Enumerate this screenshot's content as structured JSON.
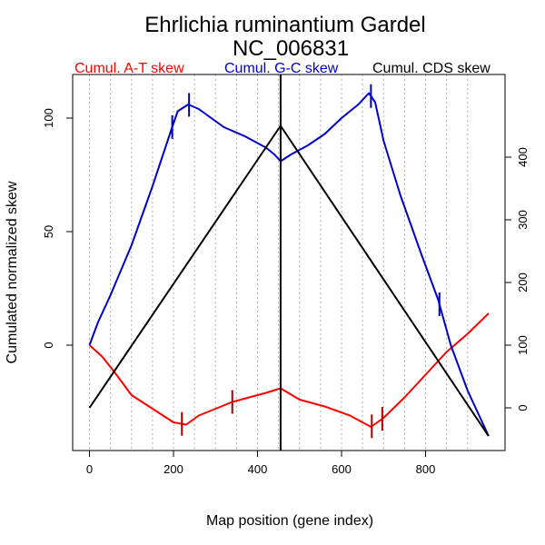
{
  "chart_data": {
    "type": "line",
    "title": "Ehrlichia ruminantium Gardel",
    "subtitle": "NC_006831",
    "xlabel": "Map position (gene index)",
    "ylabel": "Cumulated normalized skew",
    "xlim": [
      0,
      950
    ],
    "xticks": [
      "0",
      "200",
      "400",
      "600",
      "800"
    ],
    "ylim_left": [
      -47,
      117
    ],
    "yticks_left": [
      "0",
      "50",
      "100"
    ],
    "ylim_right": [
      -53,
      475
    ],
    "yticks_right": [
      "0",
      "100",
      "200",
      "300",
      "400"
    ],
    "grid": "vertical dotted lines every 50 genes",
    "series": [
      {
        "name": "Cumul. A-T skew",
        "color": "#ff0000",
        "axis": "left",
        "x": [
          0,
          30,
          60,
          100,
          150,
          200,
          230,
          260,
          300,
          340,
          380,
          420,
          455,
          500,
          560,
          620,
          670,
          700,
          750,
          800,
          850,
          900,
          950
        ],
        "y": [
          0,
          -5,
          -12,
          -22,
          -28,
          -34,
          -35,
          -31,
          -28,
          -25,
          -23,
          -21,
          -19,
          -24,
          -27,
          -31,
          -36,
          -32,
          -23,
          -13,
          -3,
          5,
          14
        ]
      },
      {
        "name": "Cumul. G-C skew",
        "color": "#0000cc",
        "axis": "left",
        "x": [
          0,
          20,
          50,
          100,
          150,
          195,
          210,
          235,
          260,
          290,
          320,
          370,
          400,
          420,
          440,
          455,
          480,
          520,
          560,
          600,
          640,
          665,
          680,
          700,
          740,
          790,
          830,
          860,
          900,
          950
        ],
        "y": [
          0,
          10,
          22,
          44,
          70,
          95,
          103,
          106,
          104,
          100,
          96,
          92,
          89,
          87,
          84,
          81,
          84,
          88,
          93,
          100,
          106,
          111,
          107,
          90,
          66,
          40,
          20,
          0,
          -20,
          -40
        ]
      },
      {
        "name": "Cumul. CDS skew",
        "color": "#000000",
        "axis": "right",
        "x": [
          0,
          455,
          950
        ],
        "y": [
          0,
          450,
          -45
        ]
      }
    ],
    "marker_ticks": [
      {
        "series": "Cumul. A-T skew",
        "x": [
          220,
          340,
          672,
          697
        ]
      },
      {
        "series": "Cumul. G-C skew",
        "x": [
          197,
          237,
          670,
          833
        ]
      }
    ],
    "vertical_line_x": 455
  }
}
